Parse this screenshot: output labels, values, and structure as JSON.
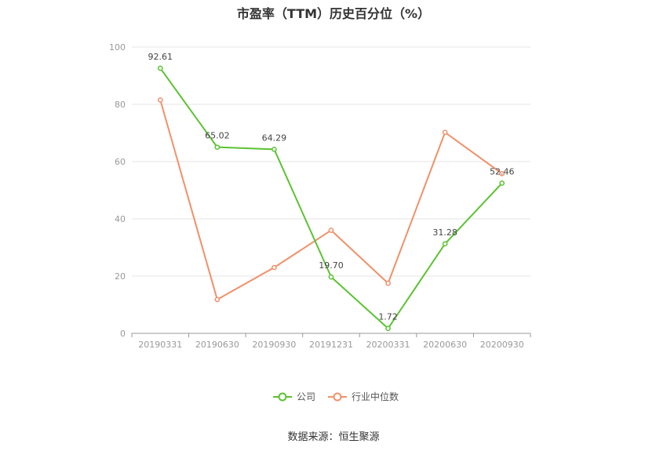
{
  "chart_data": {
    "type": "line",
    "title": "市盈率（TTM）历史百分位（%）",
    "categories": [
      "20190331",
      "20190630",
      "20190930",
      "20191231",
      "20200331",
      "20200630",
      "20200930"
    ],
    "ylim": [
      0,
      100
    ],
    "yticks": [
      0,
      20,
      40,
      60,
      80,
      100
    ],
    "grid": true,
    "legend_position": "bottom",
    "series": [
      {
        "name": "公司",
        "color": "#5cc232",
        "values": [
          92.61,
          65.02,
          64.29,
          19.7,
          1.72,
          31.28,
          52.46
        ],
        "labels": [
          "92.61",
          "65.02",
          "64.29",
          "19.70",
          "1.72",
          "31.28",
          "52.46"
        ]
      },
      {
        "name": "行业中位数",
        "color": "#f0916a",
        "values": [
          81.5,
          11.8,
          23.0,
          36.0,
          17.5,
          70.2,
          55.8
        ]
      }
    ],
    "source": "数据来源：恒生聚源"
  }
}
